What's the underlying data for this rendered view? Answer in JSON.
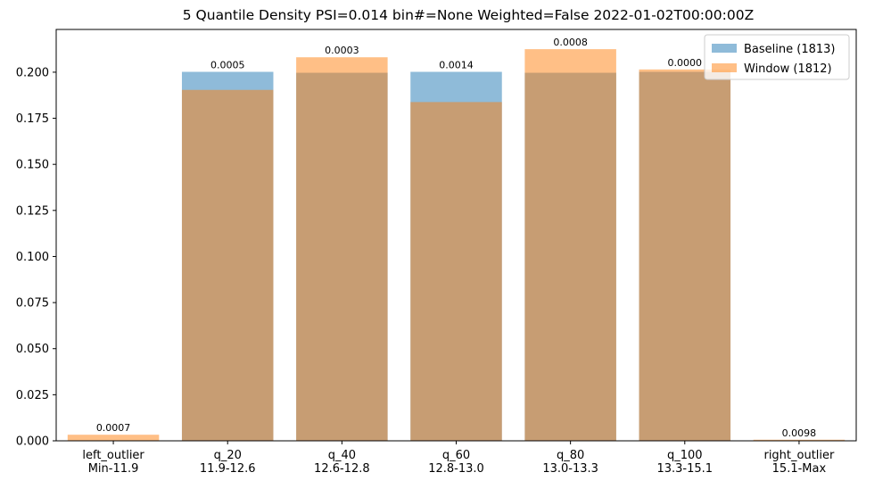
{
  "chart_data": {
    "type": "bar",
    "title": "5 Quantile Density PSI=0.014 bin#=None Weighted=False 2022-01-02T00:00:00Z",
    "xlabel": "",
    "ylabel": "",
    "ylim": [
      0,
      0.2232
    ],
    "yticks": [
      0.0,
      0.025,
      0.05,
      0.075,
      0.1,
      0.125,
      0.15,
      0.175,
      0.2
    ],
    "ytick_labels": [
      "0.000",
      "0.025",
      "0.050",
      "0.075",
      "0.100",
      "0.125",
      "0.150",
      "0.175",
      "0.200"
    ],
    "categories": [
      [
        "left_outlier",
        "Min-11.9"
      ],
      [
        "q_20",
        "11.9-12.6"
      ],
      [
        "q_40",
        "12.6-12.8"
      ],
      [
        "q_60",
        "12.8-13.0"
      ],
      [
        "q_80",
        "13.0-13.3"
      ],
      [
        "q_100",
        "13.3-15.1"
      ],
      [
        "right_outlier",
        "15.1-Max"
      ]
    ],
    "series": [
      {
        "name": "Baseline (1813)",
        "color": "#1f77b4",
        "opacity": 0.5,
        "values": [
          0.0,
          0.2002,
          0.1997,
          0.2002,
          0.1997,
          0.2002,
          0.0
        ]
      },
      {
        "name": "Window (1812)",
        "color": "#ff7f0e",
        "opacity": 0.5,
        "values": [
          0.0033,
          0.1904,
          0.2081,
          0.1838,
          0.2125,
          0.2015,
          0.0006
        ]
      }
    ],
    "bar_labels": [
      "0.0007",
      "0.0005",
      "0.0003",
      "0.0014",
      "0.0008",
      "0.0000",
      "0.0098"
    ],
    "grid": false,
    "legend_position": "upper right"
  }
}
